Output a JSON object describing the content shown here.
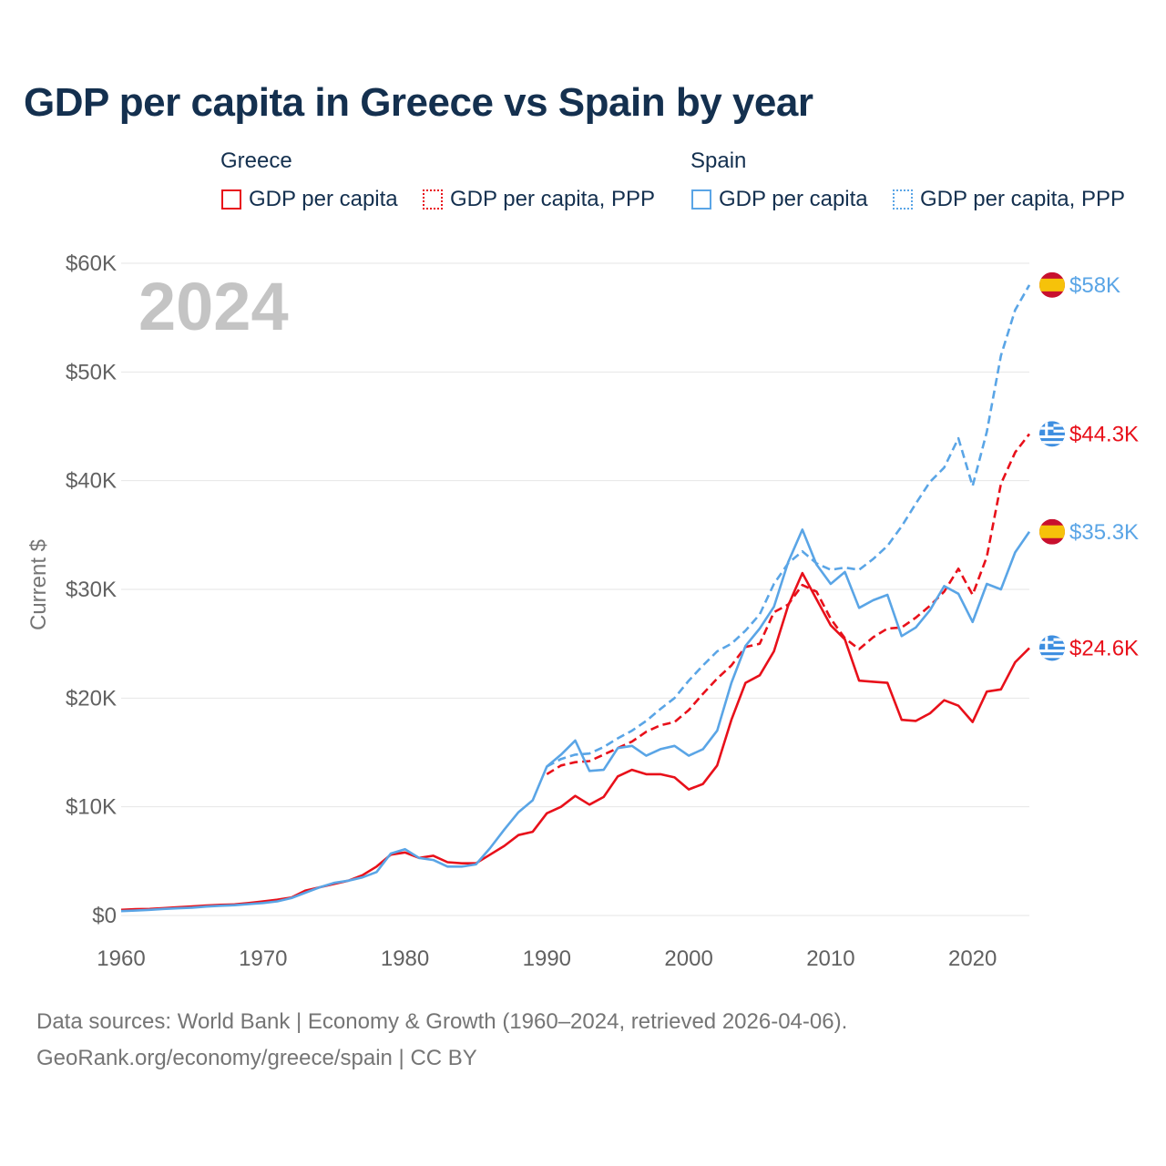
{
  "title": "GDP per capita in Greece vs Spain by year",
  "legend": {
    "greece": {
      "group": "Greece",
      "gdp": "GDP per capita",
      "ppp": "GDP per capita, PPP"
    },
    "spain": {
      "group": "Spain",
      "gdp": "GDP per capita",
      "ppp": "GDP per capita, PPP"
    }
  },
  "colors": {
    "greece": "#e8101a",
    "spain": "#5aa5e6",
    "grid": "#e6e6e6",
    "axis_text": "#616161",
    "year_watermark": "#c4c4c4"
  },
  "year_label": "2024",
  "end_labels": [
    {
      "series": "spain_ppp",
      "flag": "spain",
      "text": "$58K",
      "value": 58000
    },
    {
      "series": "greece_ppp",
      "flag": "greece",
      "text": "$44.3K",
      "value": 44300
    },
    {
      "series": "spain_gdp",
      "flag": "spain",
      "text": "$35.3K",
      "value": 35300
    },
    {
      "series": "greece_gdp",
      "flag": "greece",
      "text": "$24.6K",
      "value": 24600
    }
  ],
  "source": {
    "line1": "Data sources: World Bank | Economy & Growth (1960–2024, retrieved 2026-04-06).",
    "line2": "GeoRank.org/economy/greece/spain | CC BY"
  },
  "chart_data": {
    "type": "line",
    "title": "GDP per capita in Greece vs Spain by year",
    "xlabel": "",
    "ylabel": "Current $",
    "xlim": [
      1960,
      2024
    ],
    "ylim": [
      0,
      60000
    ],
    "xticks": [
      1960,
      1970,
      1980,
      1990,
      2000,
      2010,
      2020
    ],
    "yticks": [
      0,
      10000,
      20000,
      30000,
      40000,
      50000,
      60000
    ],
    "ytick_labels": [
      "$0",
      "$10K",
      "$20K",
      "$30K",
      "$40K",
      "$50K",
      "$60K"
    ],
    "grid": true,
    "series": [
      {
        "key": "greece_gdp",
        "name": "Greece GDP per capita",
        "country": "greece",
        "style": "solid",
        "start_year": 1960,
        "values": [
          520,
          580,
          600,
          680,
          760,
          830,
          920,
          980,
          1020,
          1150,
          1300,
          1450,
          1650,
          2300,
          2600,
          2900,
          3200,
          3700,
          4500,
          5600,
          5800,
          5300,
          5500,
          4900,
          4800,
          4800,
          5600,
          6400,
          7400,
          7700,
          9400,
          10000,
          11000,
          10200,
          10900,
          12800,
          13400,
          13000,
          13000,
          12700,
          11600,
          12100,
          13800,
          18000,
          21400,
          22100,
          24300,
          28500,
          31500,
          29100,
          26700,
          25400,
          21600,
          21500,
          21400,
          18000,
          17900,
          18600,
          19800,
          19300,
          17800,
          20600,
          20800,
          23300,
          24600
        ]
      },
      {
        "key": "greece_ppp",
        "name": "Greece GDP per capita, PPP",
        "country": "greece",
        "style": "dashed",
        "start_year": 1990,
        "values": [
          13000,
          13800,
          14100,
          14200,
          14800,
          15400,
          16000,
          16900,
          17500,
          17800,
          18900,
          20400,
          21800,
          23000,
          24700,
          25000,
          27900,
          28600,
          30400,
          29800,
          27300,
          25500,
          24500,
          25600,
          26400,
          26500,
          27400,
          28500,
          29800,
          31900,
          29500,
          33000,
          39700,
          42600,
          44300
        ]
      },
      {
        "key": "spain_gdp",
        "name": "Spain GDP per capita",
        "country": "spain",
        "style": "solid",
        "start_year": 1960,
        "values": [
          400,
          450,
          520,
          600,
          660,
          720,
          820,
          900,
          950,
          1050,
          1150,
          1300,
          1600,
          2100,
          2600,
          3000,
          3200,
          3500,
          4000,
          5700,
          6100,
          5300,
          5100,
          4500,
          4500,
          4700,
          6200,
          7900,
          9500,
          10600,
          13700,
          14800,
          16100,
          13300,
          13400,
          15400,
          15600,
          14700,
          15300,
          15600,
          14700,
          15300,
          17000,
          21400,
          24800,
          26400,
          28400,
          32500,
          35500,
          32300,
          30500,
          31600,
          28300,
          29000,
          29500,
          25700,
          26500,
          28100,
          30300,
          29600,
          27000,
          30500,
          30000,
          33400,
          35300
        ]
      },
      {
        "key": "spain_ppp",
        "name": "Spain GDP per capita, PPP",
        "country": "spain",
        "style": "dashed",
        "start_year": 1990,
        "values": [
          13700,
          14400,
          14800,
          14900,
          15500,
          16300,
          17000,
          17900,
          19000,
          20000,
          21600,
          23000,
          24300,
          25000,
          26200,
          27700,
          30500,
          32400,
          33500,
          32400,
          31800,
          32000,
          31800,
          32800,
          34000,
          35800,
          37900,
          39900,
          41200,
          43900,
          39500,
          44500,
          51500,
          55700,
          58000
        ]
      }
    ]
  }
}
